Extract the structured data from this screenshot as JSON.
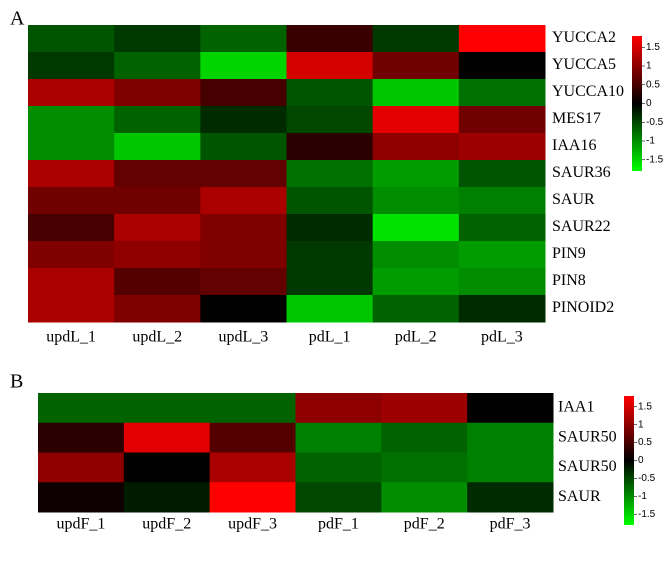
{
  "chart_data": [
    {
      "type": "heatmap",
      "panel": "A",
      "x": [
        "updL_1",
        "updL_2",
        "updL_3",
        "pdL_1",
        "pdL_2",
        "pdL_3"
      ],
      "y": [
        "YUCCA2",
        "YUCCA5",
        "YUCCA10",
        "MES17",
        "IAA16",
        "SAUR36",
        "SAUR",
        "SAUR22",
        "PIN9",
        "PIN8",
        "PINOID2"
      ],
      "values": [
        [
          -0.6,
          -0.4,
          -0.7,
          0.4,
          -0.4,
          1.8
        ],
        [
          -0.4,
          -0.7,
          -1.5,
          1.5,
          0.8,
          0.0
        ],
        [
          1.2,
          0.9,
          0.5,
          -0.6,
          -1.4,
          -0.8
        ],
        [
          -1.0,
          -0.7,
          -0.3,
          -0.5,
          1.6,
          0.8
        ],
        [
          -1.0,
          -1.4,
          -0.6,
          0.3,
          1.0,
          1.1
        ],
        [
          1.2,
          0.7,
          0.7,
          -0.8,
          -1.1,
          -0.6
        ],
        [
          0.8,
          0.8,
          1.2,
          -0.6,
          -1.0,
          -0.9
        ],
        [
          0.5,
          1.2,
          0.9,
          -0.3,
          -1.6,
          -0.7
        ],
        [
          0.9,
          1.0,
          0.9,
          -0.4,
          -1.0,
          -1.1
        ],
        [
          1.2,
          0.6,
          0.7,
          -0.4,
          -1.1,
          -1.0
        ],
        [
          1.2,
          0.9,
          0.0,
          -1.4,
          -0.7,
          -0.3
        ]
      ],
      "clim": [
        -1.8,
        1.8
      ],
      "colors": [
        "#00ff00",
        "#000000",
        "#ff0000"
      ],
      "cticks": [
        1.5,
        1,
        0.5,
        0,
        -0.5,
        -1,
        -1.5
      ]
    },
    {
      "type": "heatmap",
      "panel": "B",
      "x": [
        "updF_1",
        "updF_2",
        "updF_3",
        "pdF_1",
        "pdF_2",
        "pdF_3"
      ],
      "y": [
        "IAA1",
        "SAUR50",
        "SAUR50",
        "SAUR"
      ],
      "values": [
        [
          -0.7,
          -0.7,
          -0.7,
          1.0,
          1.1,
          0.0
        ],
        [
          0.3,
          1.6,
          0.6,
          -0.9,
          -0.7,
          -0.9
        ],
        [
          1.0,
          0.0,
          1.2,
          -0.7,
          -0.8,
          -0.9
        ],
        [
          0.1,
          -0.2,
          1.8,
          -0.5,
          -1.0,
          -0.3
        ]
      ],
      "clim": [
        -1.8,
        1.8
      ],
      "colors": [
        "#00ff00",
        "#000000",
        "#ff0000"
      ],
      "cticks": [
        1.5,
        1,
        0.5,
        0,
        -0.5,
        -1,
        -1.5
      ]
    }
  ]
}
